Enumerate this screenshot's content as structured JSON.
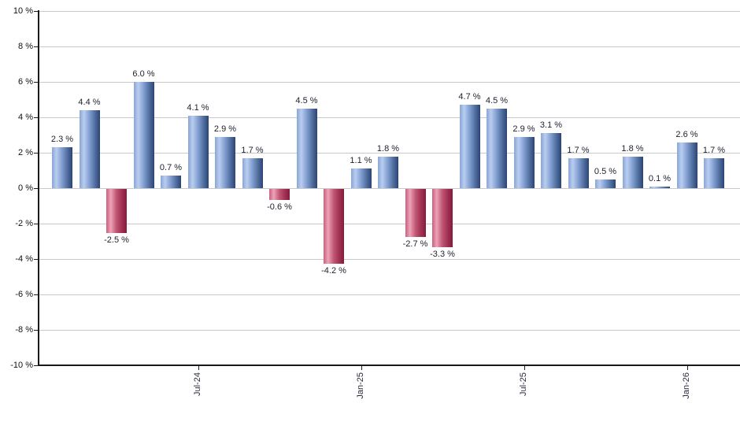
{
  "chart_data": {
    "type": "bar",
    "title": "",
    "xlabel": "",
    "ylabel": "",
    "values": [
      2.3,
      4.4,
      -2.5,
      6.0,
      0.7,
      4.1,
      2.9,
      1.7,
      -0.6,
      4.5,
      -4.2,
      1.1,
      1.8,
      -2.7,
      -3.3,
      4.7,
      4.5,
      2.9,
      3.1,
      1.7,
      0.5,
      1.8,
      0.1,
      2.6,
      1.7
    ],
    "bar_labels": [
      "2.3 %",
      "4.4 %",
      "-2.5 %",
      "6.0 %",
      "0.7 %",
      "4.1 %",
      "2.9 %",
      "1.7 %",
      "-0.6 %",
      "4.5 %",
      "-4.2 %",
      "1.1 %",
      "1.8 %",
      "-2.7 %",
      "-3.3 %",
      "4.7 %",
      "4.5 %",
      "2.9 %",
      "3.1 %",
      "1.7 %",
      "0.5 %",
      "1.8 %",
      "0.1 %",
      "2.6 %",
      "1.7 %"
    ],
    "y_tick_labels": [
      "10 %",
      "8 %",
      "6 %",
      "4 %",
      "2 %",
      "0 %",
      "-2 %",
      "-4 %",
      "-6 %",
      "-8 %",
      "-10 %"
    ],
    "ylim": [
      -10,
      10
    ],
    "y_tick_step": 2,
    "grid": "horizontal",
    "legend": "none",
    "x_ticks": [
      {
        "index": 5,
        "label": "Jul-24"
      },
      {
        "index": 11,
        "label": "Jan-25"
      },
      {
        "index": 17,
        "label": "Jul-25"
      },
      {
        "index": 23,
        "label": "Jan-26"
      }
    ],
    "colors": {
      "positive_edge_left": "#8aa6d6",
      "positive_highlight": "#b9cdf0",
      "positive_mid": "#7e9ccf",
      "positive_shade": "#51709f",
      "positive_dark": "#2c4376",
      "negative_edge_left": "#c9607e",
      "negative_highlight": "#eda2b8",
      "negative_mid": "#c05573",
      "negative_shade": "#a23355",
      "negative_dark": "#861b3c",
      "gridline": "#c9c9c9",
      "axis": "#1a1a1a",
      "bar_label_text": "#1f1f2e",
      "tick_label_text": "#111111"
    }
  }
}
